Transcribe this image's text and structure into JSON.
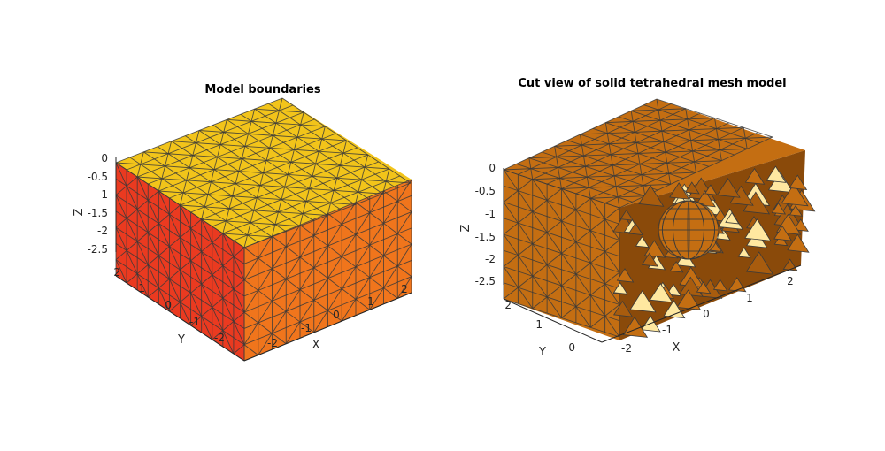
{
  "figure": {
    "left": {
      "title": "Model boundaries",
      "z_ticks": [
        "0",
        "-0.5",
        "-1",
        "-1.5",
        "-2",
        "-2.5"
      ],
      "y_ticks": [
        "2",
        "1",
        "0",
        "-1",
        "-2"
      ],
      "x_ticks": [
        "-2",
        "-1",
        "0",
        "1",
        "2"
      ],
      "z_label": "Z",
      "y_label": "Y",
      "x_label": "X",
      "colors": {
        "top": "#f2c41a",
        "left": "#ea3a20",
        "front": "#f0751c"
      }
    },
    "right": {
      "title": "Cut view of solid tetrahedral mesh model",
      "z_ticks": [
        "0",
        "-0.5",
        "-1",
        "-1.5",
        "-2",
        "-2.5"
      ],
      "y_ticks": [
        "2",
        "1",
        "0"
      ],
      "x_ticks": [
        "-2",
        "-1",
        "0",
        "1",
        "2"
      ],
      "z_label": "Z",
      "y_label": "Y",
      "x_label": "X",
      "colors": {
        "solid": "#c46e12",
        "dark": "#8a4a0a",
        "light": "#ffe8a0"
      }
    }
  }
}
